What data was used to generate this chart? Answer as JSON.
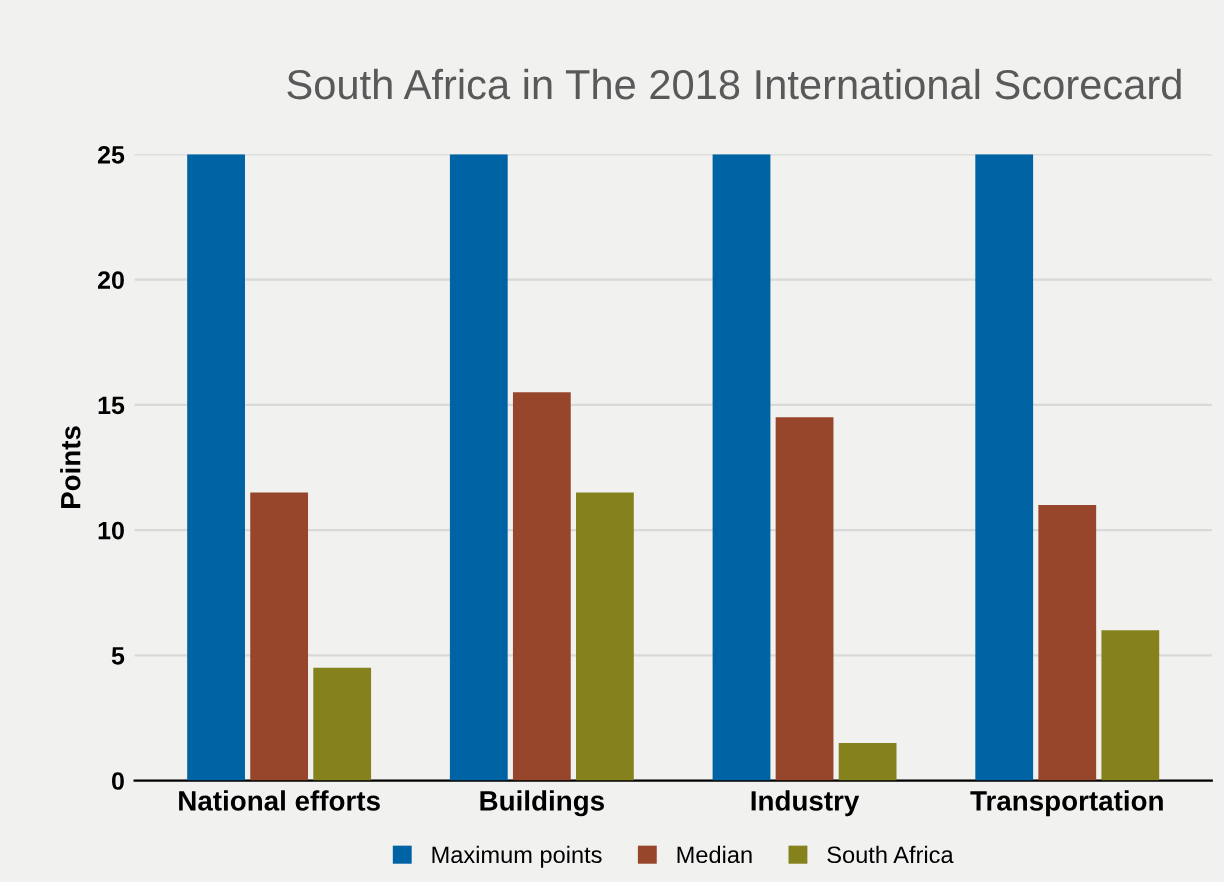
{
  "chart_data": {
    "type": "bar",
    "title": "South Africa in The 2018 International Scorecard",
    "ylabel": "Points",
    "categories": [
      "National efforts",
      "Buildings",
      "Industry",
      "Transportation"
    ],
    "series": [
      {
        "name": "Maximum points",
        "color": "#0063a3",
        "values": [
          25,
          25,
          25,
          25
        ]
      },
      {
        "name": "Median",
        "color": "#97462b",
        "values": [
          11.5,
          15.5,
          14.5,
          11
        ]
      },
      {
        "name": "South Africa",
        "color": "#85821d",
        "values": [
          4.5,
          11.5,
          1.5,
          6
        ]
      }
    ],
    "ylim": [
      0,
      25
    ],
    "yticks": [
      0,
      5,
      10,
      15,
      20,
      25
    ],
    "grid": "y",
    "legend": "bottom"
  }
}
